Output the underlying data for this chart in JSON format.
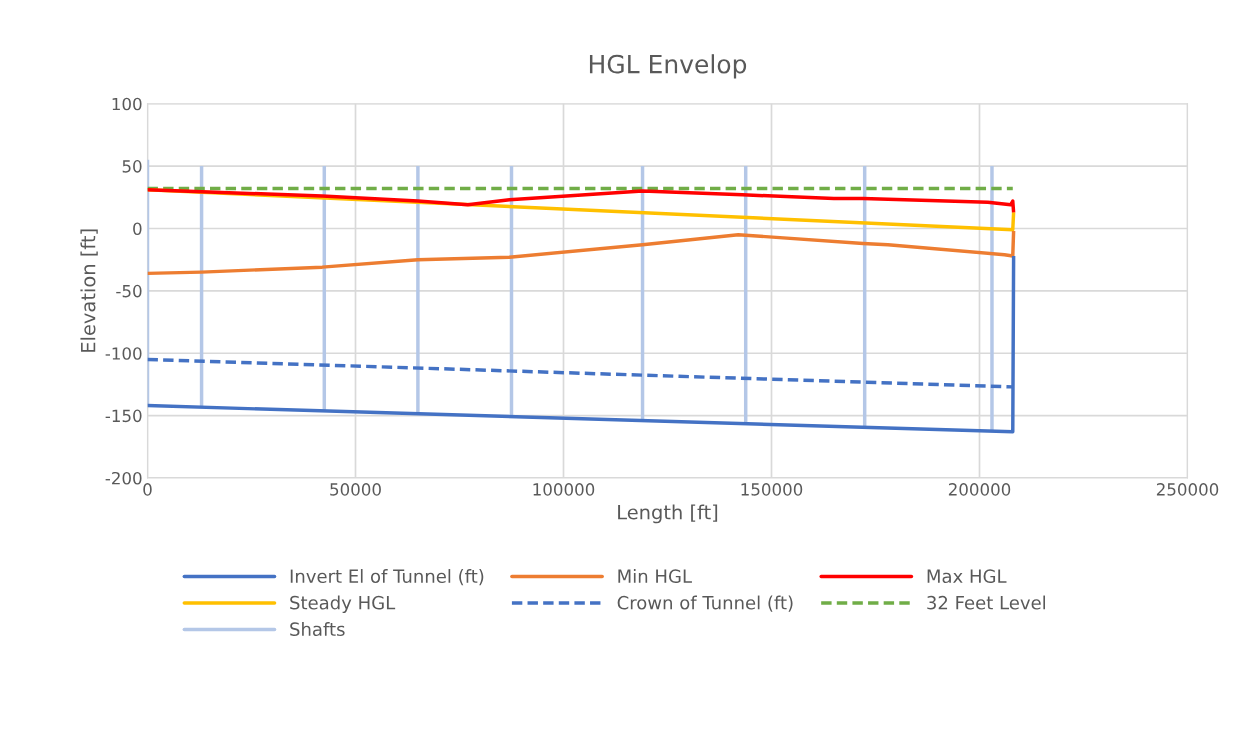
{
  "chart_data": {
    "type": "line",
    "title": "HGL Envelop",
    "xlabel": "Length [ft]",
    "ylabel": "Elevation [ft]",
    "xlim": [
      0,
      250000
    ],
    "xticks": [
      0,
      50000,
      100000,
      150000,
      200000,
      250000
    ],
    "ylim": [
      -200,
      100
    ],
    "yticks": [
      -200,
      -150,
      -100,
      -50,
      0,
      50,
      100
    ],
    "grid": true,
    "legend": "bottom",
    "marker": "none",
    "series": [
      {
        "name": "Invert El of Tunnel (ft)",
        "color": "#4472c4",
        "line_style": "solid",
        "x": [
          0,
          208000,
          208200
        ],
        "values": [
          -142,
          -163,
          -22
        ]
      },
      {
        "name": "Min HGL",
        "color": "#ed7d31",
        "line_style": "solid",
        "x": [
          0,
          13000,
          42000,
          65000,
          87000,
          119000,
          142000,
          172000,
          178000,
          206000,
          208000,
          208200
        ],
        "values": [
          -36,
          -35,
          -31,
          -25,
          -23,
          -13,
          -5,
          -12,
          -13,
          -21,
          -22,
          -2
        ]
      },
      {
        "name": "Max HGL",
        "color": "#ff0000",
        "line_style": "solid",
        "x": [
          0,
          42000,
          65000,
          77000,
          87000,
          119000,
          143000,
          165000,
          172000,
          202000,
          207500,
          208000,
          208200
        ],
        "values": [
          31,
          26,
          22,
          19,
          23,
          30,
          27,
          24,
          24,
          21,
          19,
          22,
          13
        ]
      },
      {
        "name": "Steady HGL",
        "color": "#ffc000",
        "line_style": "solid",
        "x": [
          0,
          208000,
          208200
        ],
        "values": [
          31,
          -1,
          13
        ]
      },
      {
        "name": "Crown of Tunnel (ft)",
        "color": "#4472c4",
        "line_style": "dashed",
        "x": [
          0,
          208000
        ],
        "values": [
          -105,
          -127
        ]
      },
      {
        "name": "32 Feet Level",
        "color": "#70ad47",
        "line_style": "dashed",
        "x": [
          0,
          208000
        ],
        "values": [
          32,
          32
        ]
      },
      {
        "name": "Shafts",
        "color": "#b4c7e7",
        "line_style": "solid",
        "x": [
          0,
          0
        ],
        "values": [
          -142,
          55
        ]
      },
      {
        "color": "#b4c7e7",
        "line_style": "solid",
        "x": [
          13000,
          13000
        ],
        "values": [
          -143,
          50
        ]
      },
      {
        "color": "#b4c7e7",
        "line_style": "solid",
        "x": [
          42500,
          42500
        ],
        "values": [
          -147,
          50
        ]
      },
      {
        "color": "#b4c7e7",
        "line_style": "solid",
        "x": [
          65000,
          65000
        ],
        "values": [
          -149,
          50
        ]
      },
      {
        "color": "#b4c7e7",
        "line_style": "solid",
        "x": [
          87500,
          87500
        ],
        "values": [
          -151,
          50
        ]
      },
      {
        "color": "#b4c7e7",
        "line_style": "solid",
        "x": [
          119000,
          119000
        ],
        "values": [
          -154,
          50
        ]
      },
      {
        "color": "#b4c7e7",
        "line_style": "solid",
        "x": [
          143800,
          143800
        ],
        "values": [
          -157,
          50
        ]
      },
      {
        "color": "#b4c7e7",
        "line_style": "solid",
        "x": [
          172400,
          172400
        ],
        "values": [
          -160,
          50
        ]
      },
      {
        "color": "#b4c7e7",
        "line_style": "solid",
        "x": [
          203000,
          203000
        ],
        "values": [
          -162,
          50
        ]
      }
    ]
  }
}
